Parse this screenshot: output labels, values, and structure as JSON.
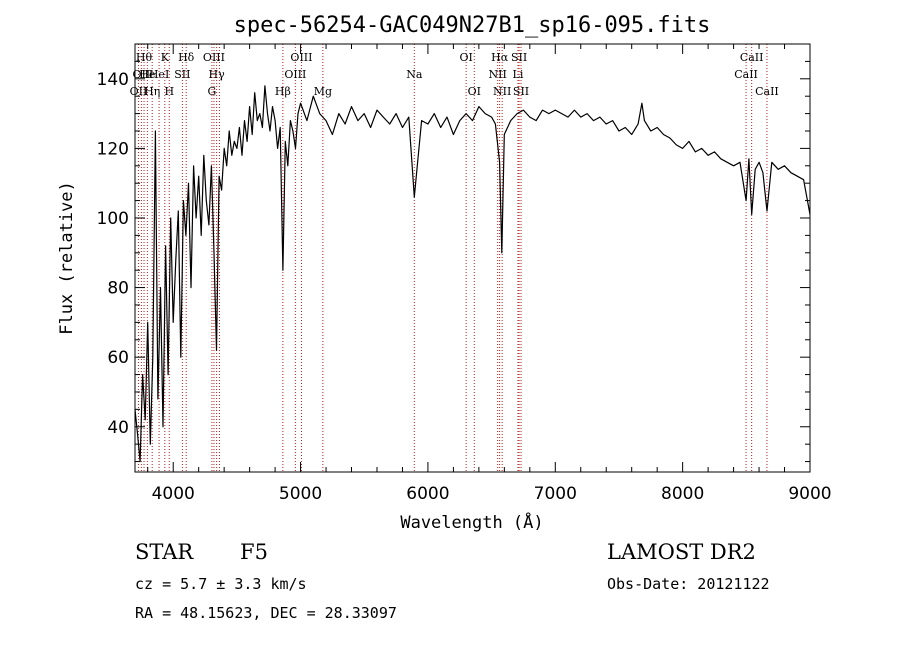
{
  "chart_data": {
    "type": "line",
    "title": "spec-56254-GAC049N27B1_sp16-095.fits",
    "xlabel": "Wavelength (Å)",
    "ylabel": "Flux (relative)",
    "xlim": [
      3700,
      9000
    ],
    "ylim": [
      27,
      150
    ],
    "x_ticks": [
      4000,
      5000,
      6000,
      7000,
      8000,
      9000
    ],
    "y_ticks": [
      40,
      60,
      80,
      100,
      120,
      140
    ],
    "grid": false,
    "series": [
      {
        "color": "#000000",
        "x": [
          3700,
          3720,
          3740,
          3760,
          3780,
          3800,
          3820,
          3840,
          3860,
          3880,
          3900,
          3920,
          3940,
          3960,
          3980,
          4000,
          4020,
          4040,
          4060,
          4080,
          4100,
          4120,
          4140,
          4160,
          4180,
          4200,
          4220,
          4240,
          4260,
          4280,
          4300,
          4320,
          4340,
          4360,
          4380,
          4400,
          4420,
          4440,
          4460,
          4480,
          4500,
          4520,
          4540,
          4560,
          4580,
          4600,
          4620,
          4640,
          4660,
          4680,
          4700,
          4720,
          4740,
          4760,
          4780,
          4800,
          4820,
          4840,
          4861,
          4880,
          4900,
          4920,
          4940,
          4960,
          4980,
          5000,
          5050,
          5100,
          5150,
          5200,
          5250,
          5300,
          5350,
          5400,
          5450,
          5500,
          5550,
          5600,
          5650,
          5700,
          5750,
          5800,
          5850,
          5893,
          5950,
          6000,
          6050,
          6100,
          6150,
          6200,
          6250,
          6300,
          6350,
          6400,
          6450,
          6500,
          6530,
          6563,
          6580,
          6600,
          6650,
          6700,
          6750,
          6800,
          6850,
          6900,
          6950,
          7000,
          7050,
          7100,
          7150,
          7200,
          7250,
          7300,
          7350,
          7400,
          7450,
          7500,
          7550,
          7600,
          7650,
          7680,
          7700,
          7750,
          7800,
          7850,
          7900,
          7950,
          8000,
          8050,
          8100,
          8150,
          8200,
          8250,
          8300,
          8350,
          8400,
          8450,
          8498,
          8520,
          8542,
          8570,
          8600,
          8630,
          8662,
          8700,
          8750,
          8800,
          8850,
          8900,
          8950,
          9000
        ],
        "y": [
          45,
          38,
          30,
          55,
          42,
          70,
          35,
          60,
          125,
          48,
          80,
          40,
          92,
          55,
          100,
          70,
          88,
          102,
          60,
          105,
          95,
          110,
          80,
          115,
          100,
          112,
          95,
          118,
          105,
          98,
          115,
          90,
          62,
          112,
          108,
          120,
          115,
          125,
          118,
          122,
          120,
          126,
          118,
          128,
          122,
          132,
          124,
          136,
          128,
          130,
          126,
          138,
          130,
          125,
          132,
          128,
          120,
          126,
          85,
          122,
          115,
          128,
          125,
          120,
          130,
          133,
          128,
          135,
          130,
          128,
          124,
          130,
          127,
          132,
          128,
          130,
          126,
          131,
          129,
          127,
          130,
          126,
          129,
          106,
          128,
          127,
          130,
          126,
          129,
          124,
          128,
          130,
          128,
          132,
          130,
          129,
          127,
          116,
          90,
          124,
          128,
          130,
          131,
          129,
          128,
          131,
          130,
          131,
          130,
          129,
          131,
          129,
          130,
          128,
          129,
          127,
          128,
          125,
          126,
          124,
          127,
          133,
          128,
          125,
          126,
          124,
          123,
          121,
          120,
          122,
          119,
          120,
          118,
          119,
          117,
          116,
          115,
          116,
          105,
          117,
          101,
          114,
          116,
          113,
          102,
          116,
          114,
          115,
          113,
          112,
          111,
          101
        ]
      }
    ],
    "line_markers": [
      {
        "x": 3727,
        "label": "OII",
        "row": 3
      },
      {
        "x": 3750,
        "label": "OII",
        "row": 2
      },
      {
        "x": 3771,
        "label": "Hθ",
        "row": 1
      },
      {
        "x": 3797,
        "label": "He",
        "row": 2
      },
      {
        "x": 3835,
        "label": "Hη",
        "row": 3
      },
      {
        "x": 3889,
        "label": "HeI",
        "row": 2
      },
      {
        "x": 3934,
        "label": "K",
        "row": 1
      },
      {
        "x": 3969,
        "label": "H",
        "row": 3
      },
      {
        "x": 4072,
        "label": "SII",
        "row": 2
      },
      {
        "x": 4102,
        "label": "Hδ",
        "row": 1
      },
      {
        "x": 4304,
        "label": "G",
        "row": 3
      },
      {
        "x": 4320,
        "label": "OIII",
        "row": 1
      },
      {
        "x": 4341,
        "label": "Hγ",
        "row": 2
      },
      {
        "x": 4363,
        "label": "",
        "row": 0
      },
      {
        "x": 4861,
        "label": "Hβ",
        "row": 3
      },
      {
        "x": 4959,
        "label": "OIII",
        "row": 2
      },
      {
        "x": 5007,
        "label": "OIII",
        "row": 1
      },
      {
        "x": 5175,
        "label": "Mg",
        "row": 3
      },
      {
        "x": 5893,
        "label": "Na",
        "row": 2
      },
      {
        "x": 6300,
        "label": "OI",
        "row": 1
      },
      {
        "x": 6364,
        "label": "OI",
        "row": 3
      },
      {
        "x": 6548,
        "label": "NII",
        "row": 2
      },
      {
        "x": 6563,
        "label": "Hα",
        "row": 1
      },
      {
        "x": 6583,
        "label": "NII",
        "row": 3
      },
      {
        "x": 6707,
        "label": "Li",
        "row": 2
      },
      {
        "x": 6716,
        "label": "SII",
        "row": 1
      },
      {
        "x": 6731,
        "label": "SII",
        "row": 3
      },
      {
        "x": 8498,
        "label": "CaII",
        "row": 2
      },
      {
        "x": 8542,
        "label": "CaII",
        "row": 1
      },
      {
        "x": 8662,
        "label": "CaII",
        "row": 3
      }
    ]
  },
  "info": {
    "object_class": "STAR",
    "subclass": "F5",
    "redshift": "cz =  5.7 ± 3.3 km/s",
    "coordinates": "RA =  48.15623, DEC =  28.33097",
    "survey": "LAMOST DR2",
    "obs_date": "Obs-Date: 20121122"
  }
}
